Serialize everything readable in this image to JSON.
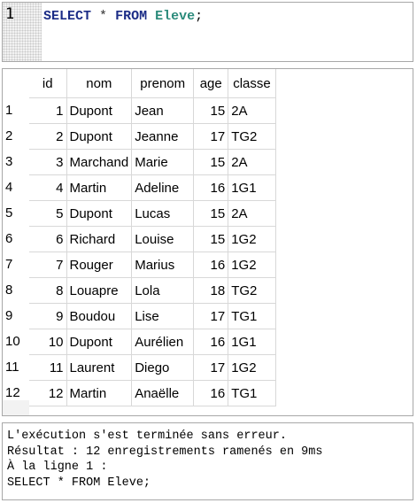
{
  "editor": {
    "line_number": "1",
    "code": {
      "kw_select": "SELECT",
      "star": "*",
      "kw_from": "FROM",
      "table": "Eleve",
      "terminator": ";"
    }
  },
  "results": {
    "columns": [
      "id",
      "nom",
      "prenom",
      "age",
      "classe"
    ],
    "row_numbers": [
      "1",
      "2",
      "3",
      "4",
      "5",
      "6",
      "7",
      "8",
      "9",
      "10",
      "11",
      "12"
    ],
    "rows": [
      [
        "1",
        "Dupont",
        "Jean",
        "15",
        "2A"
      ],
      [
        "2",
        "Dupont",
        "Jeanne",
        "17",
        "TG2"
      ],
      [
        "3",
        "Marchand",
        "Marie",
        "15",
        "2A"
      ],
      [
        "4",
        "Martin",
        "Adeline",
        "16",
        "1G1"
      ],
      [
        "5",
        "Dupont",
        "Lucas",
        "15",
        "2A"
      ],
      [
        "6",
        "Richard",
        "Louise",
        "15",
        "1G2"
      ],
      [
        "7",
        "Rouger",
        "Marius",
        "16",
        "1G2"
      ],
      [
        "8",
        "Louapre",
        "Lola",
        "18",
        "TG2"
      ],
      [
        "9",
        "Boudou",
        "Lise",
        "17",
        "TG1"
      ],
      [
        "10",
        "Dupont",
        "Aurélien",
        "16",
        "1G1"
      ],
      [
        "11",
        "Laurent",
        "Diego",
        "17",
        "1G2"
      ],
      [
        "12",
        "Martin",
        "Anaëlle",
        "16",
        "TG1"
      ]
    ]
  },
  "log": {
    "lines": [
      "L'exécution s'est terminée sans erreur.",
      "Résultat : 12 enregistrements ramenés en 9ms",
      "À la ligne 1 :",
      "SELECT * FROM Eleve;"
    ]
  },
  "colors": {
    "keyword": "#1b2c86",
    "table_name": "#2a8a7a",
    "border": "#a8a8a8",
    "grid_line": "#d8d8d8"
  }
}
